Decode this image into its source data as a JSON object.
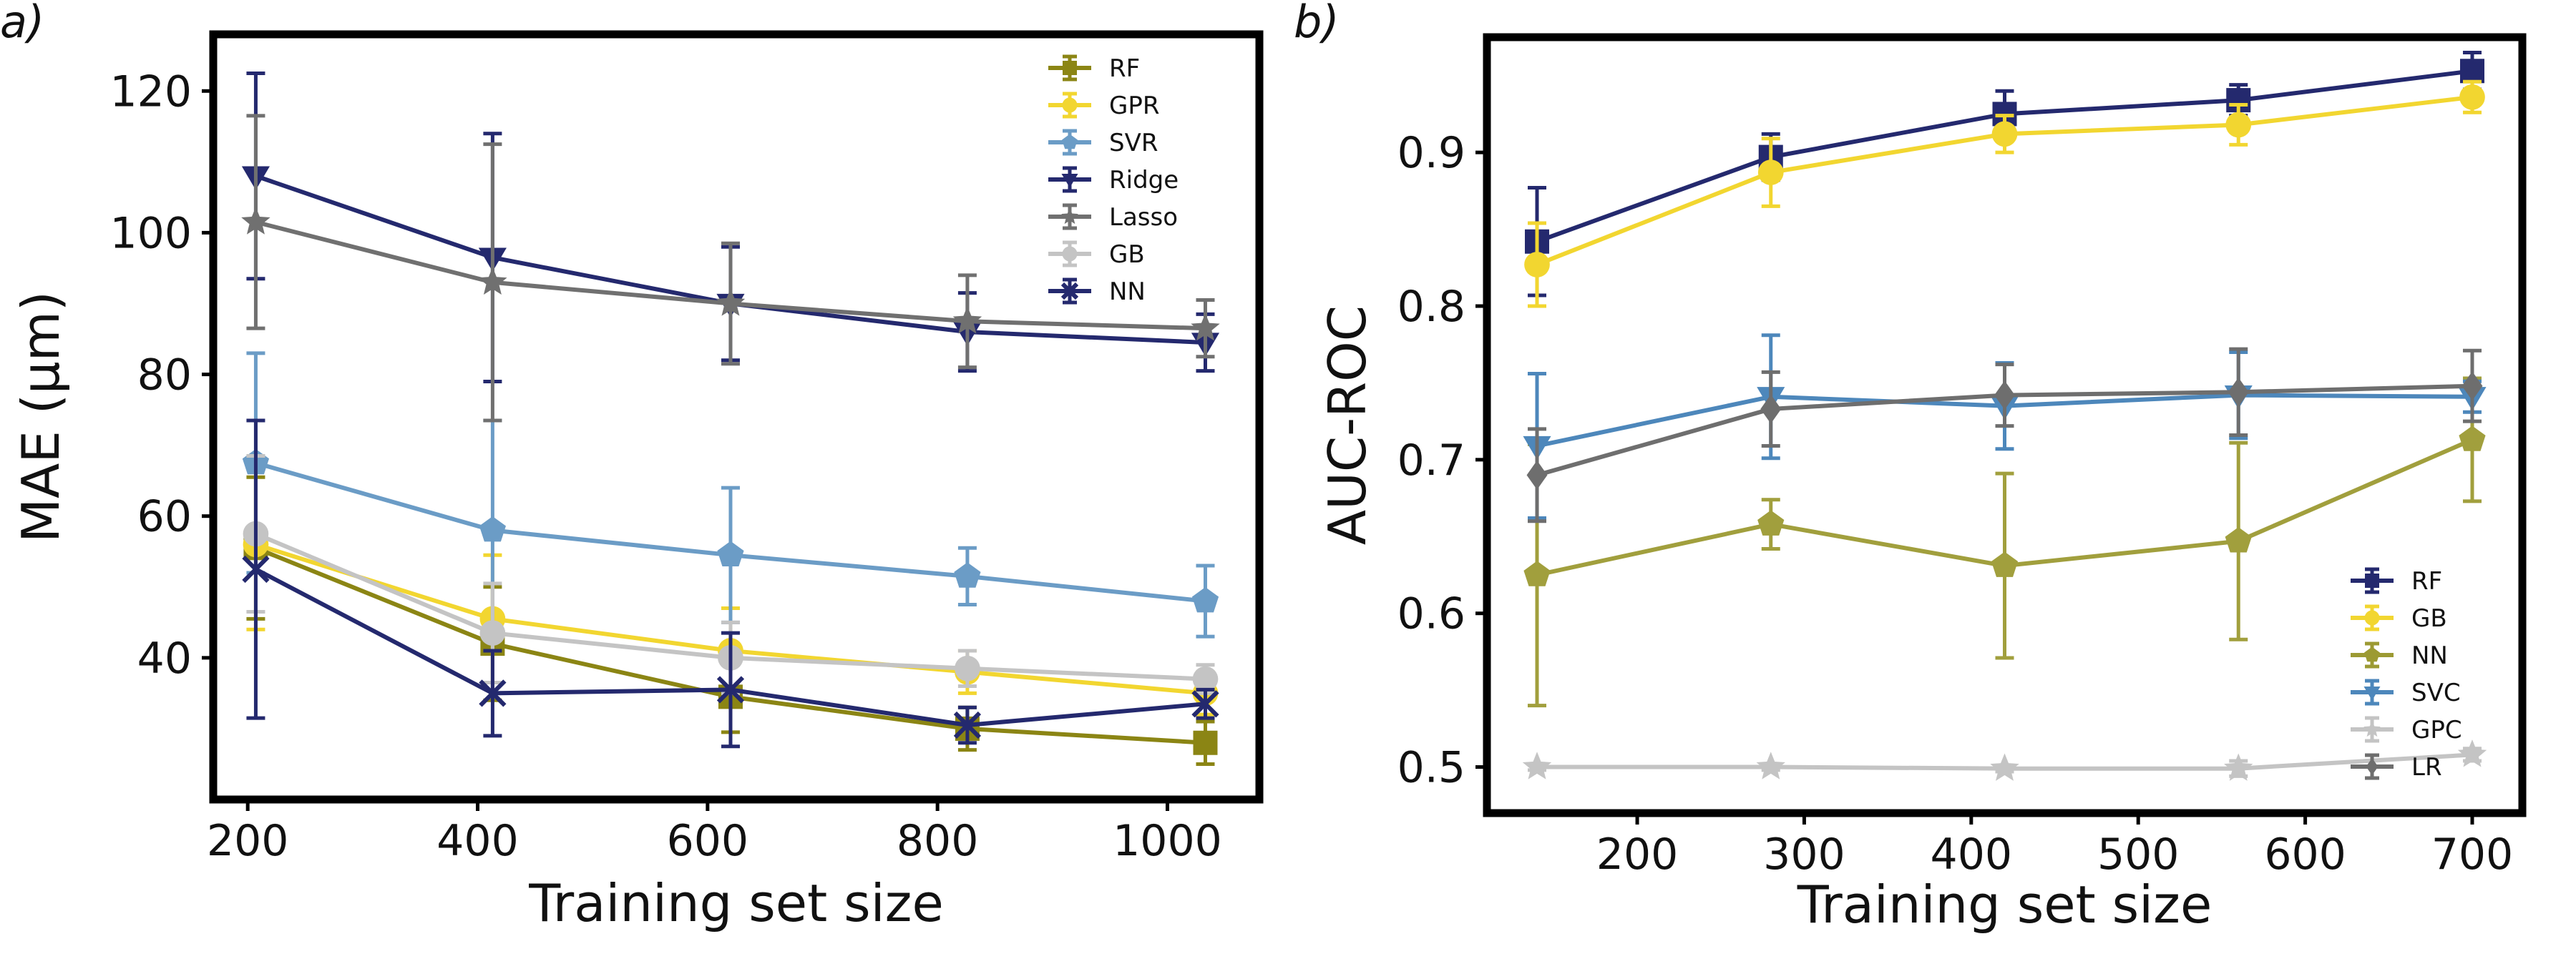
{
  "chart_data": [
    {
      "panel_label": "a)",
      "type": "line",
      "xlabel": "Training set size",
      "ylabel": "MAE (μm)",
      "xlim": [
        170,
        1080
      ],
      "ylim": [
        20,
        128
      ],
      "xticks": [
        200,
        400,
        600,
        800,
        1000
      ],
      "yticks": [
        40,
        60,
        80,
        100,
        120
      ],
      "legend_position": "top-right",
      "series": [
        {
          "name": "RF",
          "color": "#8b8514",
          "marker": "square",
          "x": [
            207,
            413,
            620,
            826,
            1033
          ],
          "y": [
            55.5,
            42,
            34.5,
            30,
            28
          ],
          "err": [
            10,
            8,
            5,
            3,
            3
          ]
        },
        {
          "name": "GPR",
          "color": "#f2d630",
          "marker": "circle",
          "x": [
            207,
            413,
            620,
            826,
            1033
          ],
          "y": [
            56,
            45.5,
            41,
            38,
            35
          ],
          "err": [
            12,
            9,
            6,
            3,
            3
          ]
        },
        {
          "name": "SVR",
          "color": "#6b9cc6",
          "marker": "pentagon",
          "x": [
            207,
            413,
            620,
            826,
            1033
          ],
          "y": [
            67.5,
            58,
            54.5,
            51.5,
            48
          ],
          "err": [
            15.5,
            15.5,
            9.5,
            4,
            5
          ]
        },
        {
          "name": "Ridge",
          "color": "#24296e",
          "marker": "triangle-down",
          "x": [
            207,
            413,
            620,
            826,
            1033
          ],
          "y": [
            108,
            96.5,
            90,
            86,
            84.5
          ],
          "err": [
            14.5,
            17.5,
            8,
            5.5,
            4
          ]
        },
        {
          "name": "Lasso",
          "color": "#707070",
          "marker": "star",
          "x": [
            207,
            413,
            620,
            826,
            1033
          ],
          "y": [
            101.5,
            93,
            90,
            87.5,
            86.5
          ],
          "err": [
            15,
            19.5,
            8.5,
            6.5,
            4
          ]
        },
        {
          "name": "GB",
          "color": "#c4c4c4",
          "marker": "circle",
          "x": [
            207,
            413,
            620,
            826,
            1033
          ],
          "y": [
            57.5,
            43.5,
            40,
            38.5,
            37
          ],
          "err": [
            11,
            7,
            5,
            2.5,
            2
          ]
        },
        {
          "name": "NN",
          "color": "#24296e",
          "marker": "x",
          "x": [
            207,
            413,
            620,
            826,
            1033
          ],
          "y": [
            52.5,
            35,
            35.5,
            30.5,
            33.5
          ],
          "err": [
            21,
            6,
            8,
            2.5,
            2
          ]
        }
      ]
    },
    {
      "panel_label": "b)",
      "type": "line",
      "xlabel": "Training set size",
      "ylabel": "AUC-ROC",
      "xlim": [
        110,
        730
      ],
      "ylim": [
        0.47,
        0.975
      ],
      "xticks": [
        200,
        300,
        400,
        500,
        600,
        700
      ],
      "yticks": [
        0.5,
        0.6,
        0.7,
        0.8,
        0.9
      ],
      "legend_position": "bottom-right",
      "series": [
        {
          "name": "RF",
          "color": "#24296e",
          "marker": "square",
          "x": [
            140,
            280,
            420,
            560,
            700
          ],
          "y": [
            0.842,
            0.897,
            0.925,
            0.934,
            0.953
          ],
          "err": [
            0.035,
            0.015,
            0.015,
            0.01,
            0.012
          ]
        },
        {
          "name": "GB",
          "color": "#f2d630",
          "marker": "circle",
          "x": [
            140,
            280,
            420,
            560,
            700
          ],
          "y": [
            0.827,
            0.887,
            0.912,
            0.918,
            0.936
          ],
          "err": [
            0.027,
            0.022,
            0.012,
            0.013,
            0.01
          ]
        },
        {
          "name": "NN",
          "color": "#9c9a33",
          "marker": "pentagon",
          "x": [
            140,
            280,
            420,
            560,
            700
          ],
          "y": [
            0.625,
            0.658,
            0.631,
            0.647,
            0.713
          ],
          "err": [
            0.085,
            0.016,
            0.06,
            0.064,
            0.04
          ]
        },
        {
          "name": "SVC",
          "color": "#4d87bb",
          "marker": "triangle-down",
          "x": [
            140,
            280,
            420,
            560,
            700
          ],
          "y": [
            0.709,
            0.741,
            0.735,
            0.742,
            0.741
          ],
          "err": [
            0.047,
            0.04,
            0.028,
            0.028,
            0.01
          ]
        },
        {
          "name": "GPC",
          "color": "#c4c4c4",
          "marker": "star",
          "x": [
            140,
            280,
            420,
            560,
            700
          ],
          "y": [
            0.5,
            0.5,
            0.499,
            0.499,
            0.508
          ],
          "err": [
            0.002,
            0.002,
            0.002,
            0.005,
            0.004
          ]
        },
        {
          "name": "LR",
          "color": "#6e6e6e",
          "marker": "diamond",
          "x": [
            140,
            280,
            420,
            560,
            700
          ],
          "y": [
            0.69,
            0.733,
            0.742,
            0.744,
            0.748
          ],
          "err": [
            0.03,
            0.024,
            0.02,
            0.028,
            0.023
          ]
        }
      ]
    }
  ]
}
